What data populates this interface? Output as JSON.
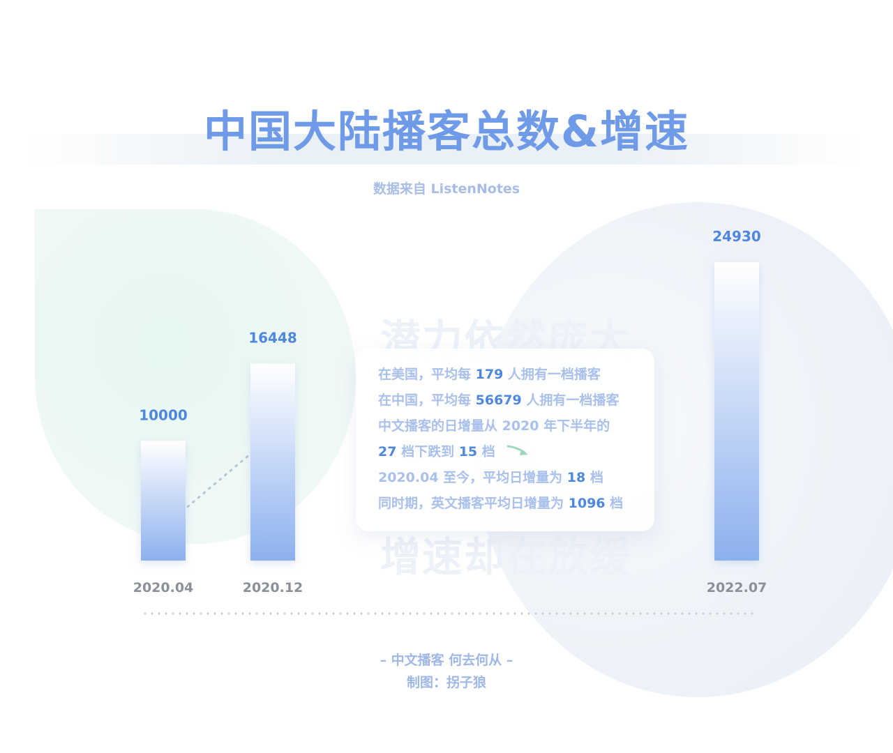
{
  "header": {
    "title": "中国大陆播客总数&增速",
    "subtitle": "数据来自 ListenNotes"
  },
  "chart_data": {
    "type": "bar",
    "categories": [
      "2020.04",
      "2020.12",
      "2022.07"
    ],
    "values": [
      10000,
      16448,
      24930
    ],
    "data_labels": [
      "10000",
      "16448",
      "24930"
    ],
    "title": "中国大陆播客总数&增速",
    "xlabel": "",
    "ylabel": "",
    "grid": false,
    "bar_color": "#8cb0ee",
    "value_label_color": "#4f86de",
    "category_label_color": "#8a8f98"
  },
  "watermark": {
    "top": "潜力依然庞大",
    "bottom": "增速却在放缓"
  },
  "card": {
    "lines": [
      [
        {
          "t": "在美国，平均每 "
        },
        {
          "t": "179",
          "hl": true
        },
        {
          "t": " 人拥有一档播客"
        }
      ],
      [
        {
          "t": "在中国，平均每 "
        },
        {
          "t": "56679",
          "hl": true
        },
        {
          "t": " 人拥有一档播客"
        }
      ],
      [
        {
          "t": "中文播客的日增量从 2020 年下半年的"
        }
      ],
      [
        {
          "t": "27",
          "hl": true
        },
        {
          "t": " 档下跌到 "
        },
        {
          "t": "15",
          "hl": true
        },
        {
          "t": " 档"
        }
      ],
      [
        {
          "t": "2020.04 至今，平均日增量为 "
        },
        {
          "t": "18",
          "hl": true
        },
        {
          "t": " 档"
        }
      ],
      [
        {
          "t": "同时期，英文播客平均日增量为 "
        },
        {
          "t": "1096",
          "hl": true
        },
        {
          "t": " 档"
        }
      ]
    ],
    "arrow_icon": "curved-arrow-down-right-icon",
    "arrow_color": "#9ed8bf"
  },
  "footer": {
    "line1": "– 中文播客 何去何从 –",
    "line2": "制图：拐子狼"
  }
}
